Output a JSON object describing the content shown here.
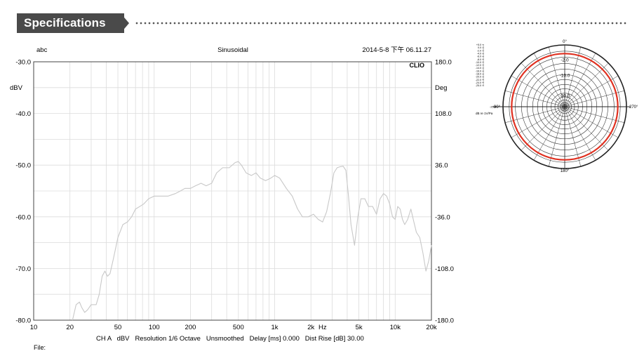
{
  "section": {
    "title": "Specifications"
  },
  "chart_data": [
    {
      "type": "line",
      "title": "Sinusoidal",
      "top_left_label": "abc",
      "timestamp": "2014-5-8 下午 06.11.27",
      "brand": "CLIO",
      "left_unit": "dBV",
      "right_unit": "Deg",
      "x_scale": "log",
      "xlim": [
        10,
        20000
      ],
      "ylim": [
        -80,
        -30
      ],
      "y2lim": [
        -180,
        180
      ],
      "x_ticks": [
        {
          "v": 10,
          "label": "10"
        },
        {
          "v": 20,
          "label": "20"
        },
        {
          "v": 50,
          "label": "50"
        },
        {
          "v": 100,
          "label": "100"
        },
        {
          "v": 200,
          "label": "200"
        },
        {
          "v": 500,
          "label": "500"
        },
        {
          "v": 1000,
          "label": "1k"
        },
        {
          "v": 2000,
          "label": "2k"
        },
        {
          "v": 5000,
          "label": "5k"
        },
        {
          "v": 10000,
          "label": "10k"
        },
        {
          "v": 20000,
          "label": "20k"
        }
      ],
      "x_unit_label": "Hz",
      "y_ticks": [
        {
          "v": -30,
          "label": "-30.0"
        },
        {
          "v": -40,
          "label": "-40.0"
        },
        {
          "v": -50,
          "label": "-50.0"
        },
        {
          "v": -60,
          "label": "-60.0"
        },
        {
          "v": -70,
          "label": "-70.0"
        },
        {
          "v": -80,
          "label": "-80.0"
        }
      ],
      "y2_ticks": [
        {
          "v": 180,
          "label": "180.0"
        },
        {
          "v": 108,
          "label": "108.0"
        },
        {
          "v": 36,
          "label": "36.0"
        },
        {
          "v": -36,
          "label": "-36.0"
        },
        {
          "v": -108,
          "label": "-108.0"
        },
        {
          "v": -180,
          "label": "-180.0"
        }
      ],
      "footer": "CH A   dBV   Resolution 1/6 Octave   Unsmoothed   Delay [ms] 0.000   Dist Rise [dB] 30.00",
      "file_label": "File:",
      "grid": true,
      "line_color": "#c8c8c8",
      "series": [
        {
          "x": [
            21,
            22.5,
            24,
            25,
            26.5,
            28,
            30,
            33,
            35,
            37,
            39,
            41,
            43,
            46,
            50,
            55,
            60,
            65,
            70,
            76,
            82,
            90,
            100,
            115,
            130,
            150,
            165,
            180,
            200,
            220,
            245,
            270,
            300,
            330,
            370,
            420,
            470,
            500,
            530,
            580,
            640,
            700,
            760,
            840,
            930,
            1000,
            1100,
            1250,
            1400,
            1550,
            1700,
            1900,
            2100,
            2300,
            2500,
            2700,
            2900,
            3100,
            3300,
            3500,
            3700,
            3900,
            4100,
            4300,
            4600,
            4900,
            5200,
            5600,
            6000,
            6500,
            7000,
            7500,
            8000,
            8500,
            9000,
            9500,
            10000,
            10500,
            11000,
            11500,
            12000,
            12700,
            13500,
            14300,
            15000,
            16000,
            17000,
            18000,
            19000,
            20000
          ],
          "y": [
            -80,
            -77,
            -76.5,
            -77.5,
            -78.5,
            -78,
            -77,
            -77,
            -75,
            -71.5,
            -70.5,
            -71.5,
            -71,
            -68,
            -64,
            -61.5,
            -61,
            -60,
            -58.5,
            -58,
            -57.5,
            -56.5,
            -56,
            -56,
            -56,
            -55.5,
            -55,
            -54.5,
            -54.5,
            -54,
            -53.5,
            -54,
            -53.5,
            -51.5,
            -50.5,
            -50.5,
            -49.5,
            -49.3,
            -50,
            -51.5,
            -52,
            -51.5,
            -52.5,
            -53,
            -52.5,
            -52,
            -52.5,
            -54.5,
            -56,
            -58.5,
            -60,
            -60,
            -59.5,
            -60.5,
            -61,
            -59,
            -55.5,
            -51.5,
            -50.5,
            -50.3,
            -50.2,
            -51,
            -56,
            -61.5,
            -65.5,
            -60,
            -56.5,
            -56.5,
            -58,
            -58,
            -59.5,
            -56.5,
            -55.5,
            -56,
            -57.5,
            -60,
            -60.5,
            -58,
            -58.5,
            -60.5,
            -61.5,
            -60.5,
            -58.5,
            -61,
            -63,
            -64,
            -67,
            -70.5,
            -68.5,
            -65.5
          ]
        }
      ]
    },
    {
      "type": "polar",
      "r_labels_top": [
        "-2.0",
        "-10.0",
        "-30.0"
      ],
      "angle_labels": [
        "0°",
        "90°",
        "180°",
        "270°"
      ],
      "scale_values": [
        "+5.0",
        "0.0",
        "-2.0",
        "-4.0",
        "-6.0",
        "-8.0",
        "-10.0",
        "-12.0",
        "-14.0",
        "-16.0",
        "-18.0",
        "-20.0",
        "-22.0",
        "-24.0",
        "-25.0"
      ],
      "scale_side_value": "-25.0",
      "scale_unit": "dB re 1V/Pa",
      "pattern": "omnidirectional",
      "pattern_level_db": -2,
      "pattern_color": "#e03020"
    }
  ]
}
